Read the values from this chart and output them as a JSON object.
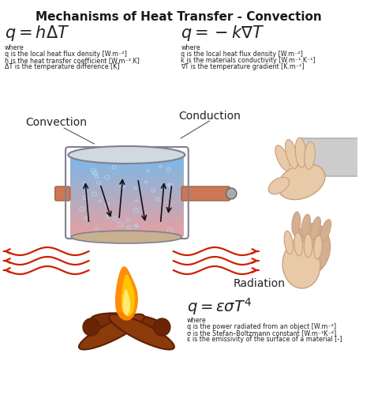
{
  "title": "Mechanisms of Heat Transfer - Convection",
  "title_fontsize": 11,
  "title_color": "#1a1a1a",
  "background_color": "#ffffff",
  "convection_label": "Convection",
  "conduction_label": "Conduction",
  "radiation_label": "Radiation",
  "eq_convection": "$q = h\\Delta T$",
  "eq_conduction": "$q = -k\\nabla T$",
  "eq_radiation": "$q = \\varepsilon\\sigma T^4$",
  "conv_where": "where",
  "conv_line1": "q is the local heat flux density [W.m⁻²]",
  "conv_line2": "h is the heat transfer coefficient [W.m⁻².K]",
  "conv_line3": "ΔT is the temperature difference [K]",
  "cond_where": "where",
  "cond_line1": "q is the local heat flux density [W.m⁻²]",
  "cond_line2": "k is the materials conductivity [W.m⁻¹.K⁻¹]",
  "cond_line3": "∇T is the temperature gradient [K.m⁻¹]",
  "rad_where": "where",
  "rad_line1": "q is the power radiated from an object [W.m⁻²]",
  "rad_line2": "σ is the Stefan–Boltzmann constant [W.m⁻²K⁻⁴]",
  "rad_line3": "ε is the emissivity of the surface of a material [-]",
  "text_color": "#222222",
  "label_color": "#222222",
  "eq_fontsize": 12,
  "small_fontsize": 5.8,
  "label_fontsize": 10,
  "wave_color_left": "#cc2200",
  "wave_color_right": "#cc2200",
  "pot_body_color": "#c0c0c8",
  "pot_edge_color": "#808090",
  "water_top_color": "#7ab8e8",
  "water_bot_color": "#e8a0a0",
  "handle_color": "#cc7755",
  "log_color": "#8b3a0a",
  "log_edge_color": "#5c2006",
  "flame_color1": "#ff8800",
  "flame_color2": "#ffcc00",
  "hand_fill": "#e8c9a8",
  "hand_edge": "#c8a080"
}
